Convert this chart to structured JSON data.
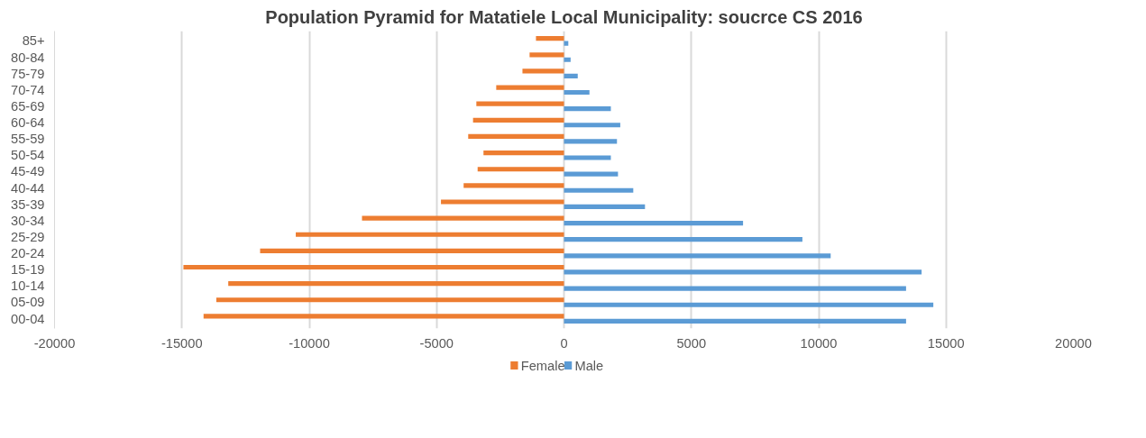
{
  "chart_data": {
    "type": "bar",
    "orientation": "horizontal",
    "title": "Population Pyramid for Matatiele Local Municipality: soucrce CS 2016",
    "categories": [
      "85+",
      "80-84",
      "75-79",
      "70-74",
      "65-69",
      "60-64",
      "55-59",
      "50-54",
      "45-49",
      "40-44",
      "35-39",
      "30-34",
      "25-29",
      "20-24",
      "15-19",
      "10-14",
      "05-09",
      "00-04"
    ],
    "series": [
      {
        "name": "Female",
        "color": "#ed7d31",
        "values": [
          -1100,
          -1350,
          -1630,
          -2660,
          -3440,
          -3570,
          -3760,
          -3160,
          -3390,
          -3940,
          -4830,
          -7930,
          -10530,
          -11930,
          -14940,
          -13180,
          -13650,
          -14150
        ]
      },
      {
        "name": "Male",
        "color": "#5b9bd5",
        "values": [
          170,
          260,
          540,
          1000,
          1840,
          2210,
          2080,
          1840,
          2120,
          2720,
          3180,
          7030,
          9360,
          10470,
          14040,
          13430,
          14500,
          13430
        ]
      }
    ],
    "xlim": [
      -20000,
      20000
    ],
    "xticks": [
      -20000,
      -15000,
      -10000,
      -5000,
      0,
      5000,
      10000,
      15000,
      20000
    ],
    "grid": "x",
    "legend": "bottom"
  }
}
